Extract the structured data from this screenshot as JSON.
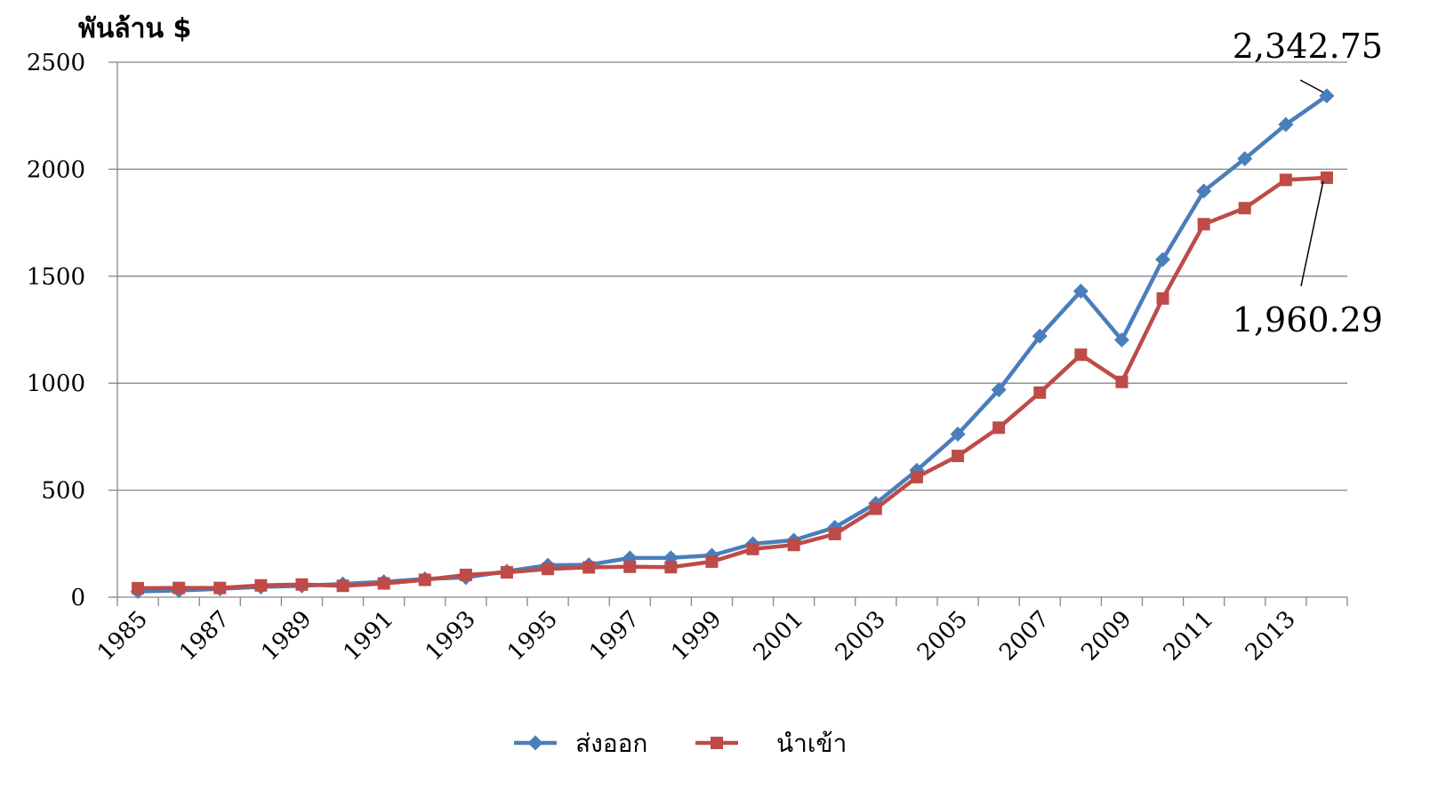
{
  "chart_data": {
    "type": "line",
    "y_unit": "พันล้าน $",
    "x": [
      1985,
      1986,
      1987,
      1988,
      1989,
      1990,
      1991,
      1992,
      1993,
      1994,
      1995,
      1996,
      1997,
      1998,
      1999,
      2000,
      2001,
      2002,
      2003,
      2004,
      2005,
      2006,
      2007,
      2008,
      2009,
      2010,
      2011,
      2012,
      2013,
      2014
    ],
    "x_tick_labels": [
      "1985",
      "1987",
      "1989",
      "1991",
      "1993",
      "1995",
      "1997",
      "1999",
      "2001",
      "2003",
      "2005",
      "2007",
      "2009",
      "2011",
      "2013"
    ],
    "y_ticks": [
      0,
      500,
      1000,
      1500,
      2000,
      2500
    ],
    "y_tick_labels": [
      "0",
      "500",
      "1000",
      "1500",
      "2000",
      "2500"
    ],
    "ylim": [
      0,
      2500
    ],
    "grid": true,
    "legend_position": "bottom",
    "series": [
      {
        "name": "ส่งออก",
        "color": "#4A7EBB",
        "marker": "diamond",
        "values": [
          27,
          31,
          39,
          48,
          53,
          62,
          72,
          85,
          92,
          121,
          149,
          151,
          183,
          184,
          195,
          249,
          266,
          326,
          438,
          593,
          762,
          969,
          1220,
          1430,
          1202,
          1578,
          1898,
          2049,
          2209,
          2342.75
        ]
      },
      {
        "name": "นำเข้า",
        "color": "#BE4B48",
        "marker": "square",
        "values": [
          42,
          43,
          43,
          55,
          59,
          53,
          64,
          81,
          104,
          116,
          132,
          139,
          142,
          140,
          166,
          225,
          244,
          295,
          413,
          561,
          660,
          792,
          956,
          1133,
          1006,
          1396,
          1743,
          1818,
          1950,
          1960.29
        ]
      }
    ],
    "annotations": [
      {
        "text": "2,342.75",
        "series": "ส่งออก",
        "x": 2014,
        "y": 2342.75
      },
      {
        "text": "1,960.29",
        "series": "นำเข้า",
        "x": 2014,
        "y": 1960.29
      }
    ]
  }
}
